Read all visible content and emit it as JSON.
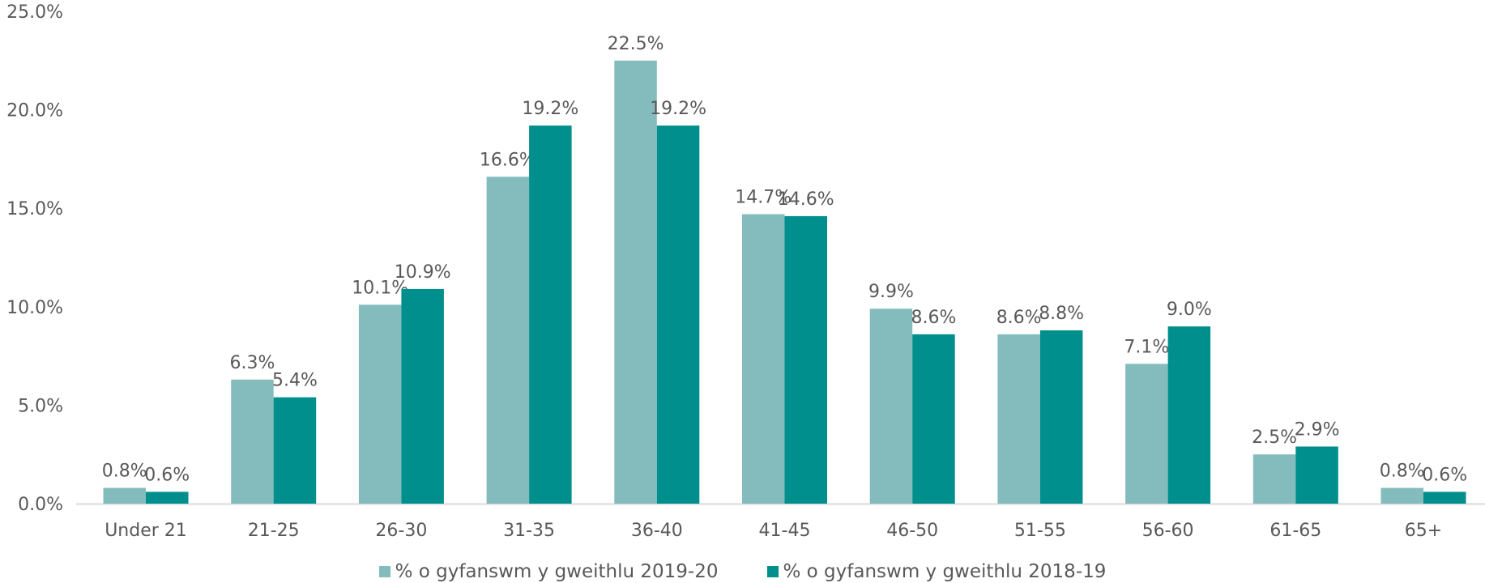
{
  "chart_data": {
    "type": "bar",
    "categories": [
      "Under 21",
      "21-25",
      "26-30",
      "31-35",
      "36-40",
      "41-45",
      "46-50",
      "51-55",
      "56-60",
      "61-65",
      "65+"
    ],
    "series": [
      {
        "name": "% o gyfanswm y gweithlu 2019-20",
        "color": "#84BCBD",
        "values": [
          0.8,
          6.3,
          10.1,
          16.6,
          22.5,
          14.7,
          9.9,
          8.6,
          7.1,
          2.5,
          0.8
        ],
        "value_labels": [
          "0.8%",
          "6.3%",
          "10.1%",
          "16.6%",
          "22.5%",
          "14.7%",
          "9.9%",
          "8.6%",
          "7.1%",
          "2.5%",
          "0.8%"
        ]
      },
      {
        "name": "% o gyfanswm y gweithlu 2018-19",
        "color": "#008F8C",
        "values": [
          0.6,
          5.4,
          10.9,
          19.2,
          19.2,
          14.6,
          8.6,
          8.8,
          9.0,
          2.9,
          0.6
        ],
        "value_labels": [
          "0.6%",
          "5.4%",
          "10.9%",
          "19.2%",
          "19.2%",
          "14.6%",
          "8.6%",
          "8.8%",
          "9.0%",
          "2.9%",
          "0.6%"
        ]
      }
    ],
    "ylim": [
      0,
      25
    ],
    "yticks": [
      0,
      5,
      10,
      15,
      20,
      25
    ],
    "ytick_labels": [
      "0.0%",
      "5.0%",
      "10.0%",
      "15.0%",
      "20.0%",
      "25.0%"
    ],
    "grid": false,
    "legend_position": "bottom"
  }
}
